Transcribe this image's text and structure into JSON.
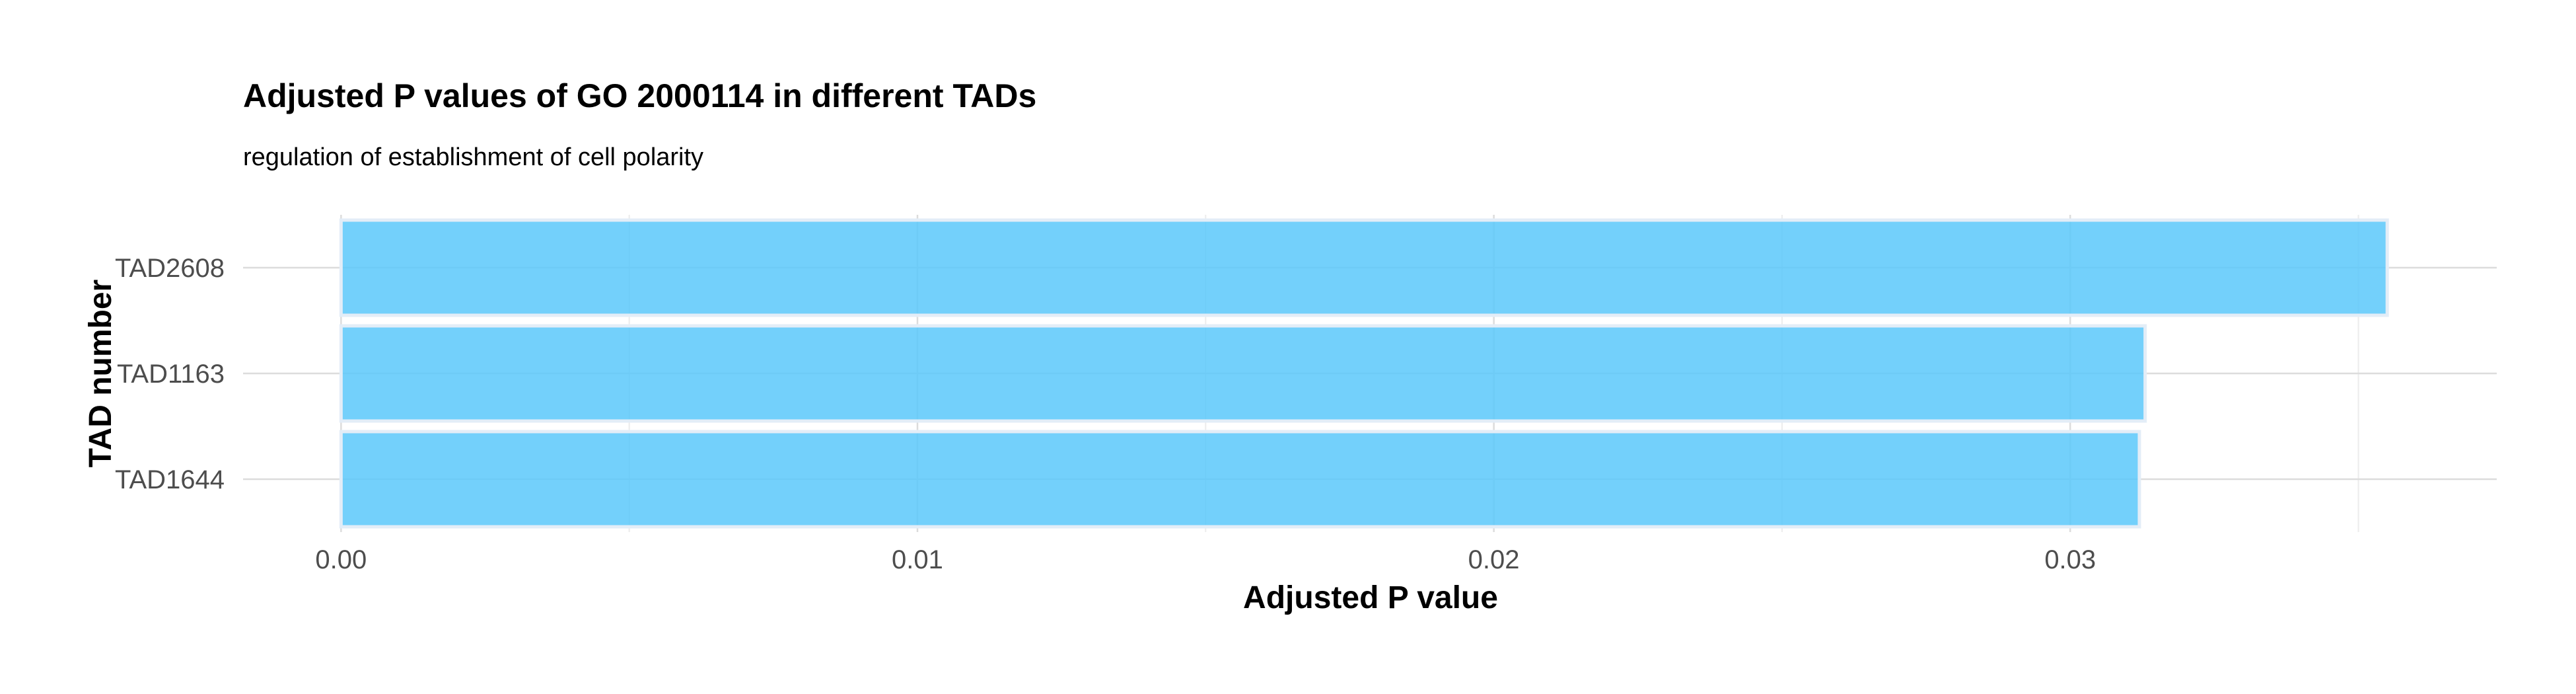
{
  "chart_data": {
    "type": "bar",
    "orientation": "horizontal",
    "title": "Adjusted P values of GO 2000114 in different TADs",
    "subtitle": "regulation of establishment of cell polarity",
    "xlabel": "Adjusted P value",
    "ylabel": "TAD number",
    "categories": [
      "TAD2608",
      "TAD1163",
      "TAD1644"
    ],
    "values": [
      0.0355,
      0.0313,
      0.0312
    ],
    "xlim": [
      -0.0017,
      0.0374
    ],
    "x_ticks": [
      0,
      0.01,
      0.02,
      0.03
    ],
    "x_tick_labels": [
      "0.00",
      "0.01",
      "0.02",
      "0.03"
    ],
    "bar_color": "#5ac8fa",
    "grid": true,
    "legend": "none"
  }
}
